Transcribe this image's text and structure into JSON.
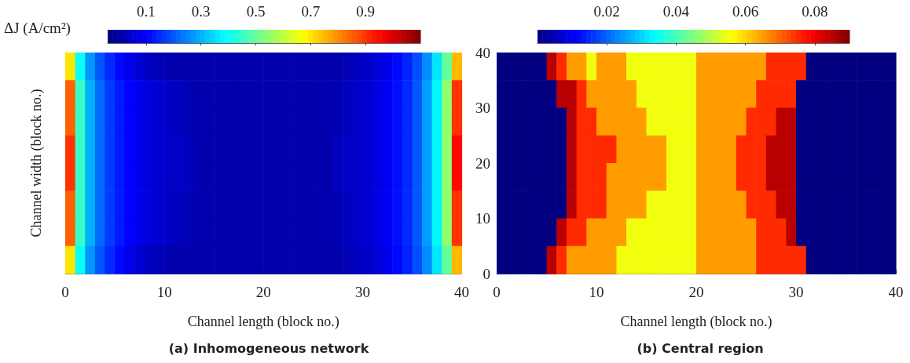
{
  "chart_data": [
    {
      "type": "heatmap",
      "title": "(a) Inhomogeneous network",
      "xlabel": "Channel length (block no.)",
      "ylabel": "Channel width (block no.)",
      "clabel": "ΔJ (A/cm²)",
      "tick_labels": "x",
      "xlim": [
        0,
        40
      ],
      "ylim": [
        0,
        40
      ],
      "xticks": [
        0,
        10,
        20,
        30,
        40
      ],
      "yticks": [
        0,
        10,
        20,
        30,
        40
      ],
      "clim": [
        -0.04,
        1.1
      ],
      "cticks": [
        0.1,
        0.3,
        0.5,
        0.7,
        0.9
      ],
      "cells": [
        [
          0.7,
          0.4,
          0.27,
          0.2,
          0.15,
          0.11,
          0.08,
          0.05,
          0.03,
          0.02,
          0.01,
          0.01,
          0.01,
          0.01,
          0.01,
          0.01,
          0.01,
          0.01,
          0.01,
          0.01,
          0.01,
          0.01,
          0.01,
          0.01,
          0.01,
          0.01,
          0.01,
          0.01,
          0.02,
          0.03,
          0.04,
          0.06,
          0.08,
          0.11,
          0.14,
          0.19,
          0.26,
          0.36,
          0.5,
          0.75
        ],
        [
          0.85,
          0.45,
          0.3,
          0.22,
          0.17,
          0.13,
          0.1,
          0.08,
          0.06,
          0.05,
          0.04,
          0.03,
          0.02,
          0.01,
          0.01,
          0.01,
          0.01,
          0.01,
          0.01,
          0.01,
          0.01,
          0.01,
          0.01,
          0.01,
          0.01,
          0.01,
          0.01,
          0.02,
          0.03,
          0.04,
          0.05,
          0.07,
          0.09,
          0.12,
          0.15,
          0.2,
          0.28,
          0.38,
          0.55,
          0.9
        ],
        [
          0.85,
          0.45,
          0.3,
          0.22,
          0.17,
          0.13,
          0.1,
          0.08,
          0.06,
          0.05,
          0.04,
          0.03,
          0.02,
          0.01,
          0.01,
          0.01,
          0.01,
          0.01,
          0.01,
          0.01,
          0.01,
          0.01,
          0.01,
          0.01,
          0.01,
          0.01,
          0.01,
          0.02,
          0.03,
          0.04,
          0.05,
          0.07,
          0.09,
          0.12,
          0.15,
          0.2,
          0.28,
          0.38,
          0.55,
          0.9
        ],
        [
          0.9,
          0.45,
          0.3,
          0.22,
          0.17,
          0.13,
          0.1,
          0.08,
          0.06,
          0.05,
          0.04,
          0.04,
          0.03,
          0.01,
          0.01,
          0.01,
          0.01,
          0.01,
          0.01,
          0.01,
          0.01,
          0.01,
          0.01,
          0.01,
          0.01,
          0.01,
          0.01,
          0.03,
          0.04,
          0.04,
          0.05,
          0.07,
          0.09,
          0.12,
          0.15,
          0.2,
          0.28,
          0.38,
          0.55,
          0.95
        ],
        [
          0.9,
          0.45,
          0.3,
          0.22,
          0.17,
          0.13,
          0.1,
          0.08,
          0.06,
          0.05,
          0.04,
          0.04,
          0.03,
          0.01,
          0.01,
          0.01,
          0.01,
          0.01,
          0.01,
          0.01,
          0.01,
          0.01,
          0.01,
          0.01,
          0.01,
          0.01,
          0.01,
          0.03,
          0.04,
          0.04,
          0.05,
          0.07,
          0.09,
          0.12,
          0.15,
          0.2,
          0.28,
          0.38,
          0.55,
          0.95
        ],
        [
          0.85,
          0.45,
          0.3,
          0.22,
          0.17,
          0.13,
          0.1,
          0.08,
          0.06,
          0.05,
          0.04,
          0.03,
          0.02,
          0.01,
          0.01,
          0.01,
          0.01,
          0.01,
          0.01,
          0.01,
          0.01,
          0.01,
          0.01,
          0.01,
          0.01,
          0.01,
          0.01,
          0.02,
          0.03,
          0.04,
          0.05,
          0.07,
          0.09,
          0.12,
          0.15,
          0.2,
          0.28,
          0.38,
          0.55,
          0.9
        ],
        [
          0.85,
          0.45,
          0.3,
          0.22,
          0.17,
          0.13,
          0.1,
          0.08,
          0.06,
          0.05,
          0.04,
          0.03,
          0.02,
          0.01,
          0.01,
          0.01,
          0.01,
          0.01,
          0.01,
          0.01,
          0.01,
          0.01,
          0.01,
          0.01,
          0.01,
          0.01,
          0.01,
          0.02,
          0.03,
          0.04,
          0.05,
          0.07,
          0.09,
          0.12,
          0.15,
          0.2,
          0.28,
          0.38,
          0.55,
          0.9
        ],
        [
          0.7,
          0.4,
          0.27,
          0.2,
          0.15,
          0.11,
          0.08,
          0.05,
          0.03,
          0.02,
          0.01,
          0.01,
          0.01,
          0.01,
          0.01,
          0.01,
          0.01,
          0.01,
          0.01,
          0.01,
          0.01,
          0.01,
          0.01,
          0.01,
          0.01,
          0.01,
          0.01,
          0.01,
          0.02,
          0.03,
          0.04,
          0.06,
          0.08,
          0.11,
          0.14,
          0.19,
          0.26,
          0.36,
          0.5,
          0.75
        ]
      ]
    },
    {
      "type": "heatmap",
      "title": "(b) Central region",
      "xlabel": "Channel length (block no.)",
      "xlim": [
        0,
        40
      ],
      "ylim": [
        0,
        40
      ],
      "xticks": [
        0,
        10,
        20,
        30,
        40
      ],
      "yticks": [
        0,
        10,
        20,
        30,
        40
      ],
      "clim": [
        0,
        0.09
      ],
      "cticks": [
        0.02,
        0.04,
        0.06,
        0.08
      ],
      "cells": [
        [
          0,
          0,
          0,
          0,
          0,
          0.085,
          0.075,
          0.065,
          0.065,
          0.055,
          0.065,
          0.065,
          0.065,
          0.055,
          0.055,
          0.055,
          0.055,
          0.055,
          0.055,
          0.055,
          0.065,
          0.065,
          0.065,
          0.065,
          0.065,
          0.065,
          0.065,
          0.075,
          0.075,
          0.075,
          0.075,
          0,
          0,
          0,
          0,
          0,
          0,
          0,
          0,
          0
        ],
        [
          0,
          0,
          0,
          0,
          0,
          0,
          0.085,
          0.085,
          0.075,
          0.065,
          0.065,
          0.065,
          0.065,
          0.065,
          0.055,
          0.055,
          0.055,
          0.055,
          0.055,
          0.055,
          0.065,
          0.065,
          0.065,
          0.065,
          0.065,
          0.065,
          0.075,
          0.075,
          0.075,
          0.075,
          0,
          0,
          0,
          0,
          0,
          0,
          0,
          0,
          0,
          0
        ],
        [
          0,
          0,
          0,
          0,
          0,
          0,
          0,
          0.085,
          0.075,
          0.075,
          0.065,
          0.065,
          0.065,
          0.065,
          0.065,
          0.055,
          0.055,
          0.055,
          0.055,
          0.055,
          0.065,
          0.065,
          0.065,
          0.065,
          0.065,
          0.075,
          0.075,
          0.075,
          0.085,
          0.085,
          0,
          0,
          0,
          0,
          0,
          0,
          0,
          0,
          0,
          0
        ],
        [
          0,
          0,
          0,
          0,
          0,
          0,
          0,
          0.085,
          0.075,
          0.075,
          0.075,
          0.075,
          0.065,
          0.065,
          0.065,
          0.065,
          0.065,
          0.055,
          0.055,
          0.055,
          0.065,
          0.065,
          0.065,
          0.065,
          0.075,
          0.075,
          0.075,
          0.085,
          0.085,
          0.085,
          0,
          0,
          0,
          0,
          0,
          0,
          0,
          0,
          0,
          0
        ],
        [
          0,
          0,
          0,
          0,
          0,
          0,
          0,
          0.085,
          0.075,
          0.075,
          0.075,
          0.065,
          0.065,
          0.065,
          0.065,
          0.065,
          0.065,
          0.055,
          0.055,
          0.055,
          0.065,
          0.065,
          0.065,
          0.065,
          0.075,
          0.075,
          0.075,
          0.085,
          0.085,
          0.085,
          0,
          0,
          0,
          0,
          0,
          0,
          0,
          0,
          0,
          0
        ],
        [
          0,
          0,
          0,
          0,
          0,
          0,
          0,
          0.085,
          0.075,
          0.075,
          0.075,
          0.065,
          0.065,
          0.065,
          0.065,
          0.055,
          0.055,
          0.055,
          0.055,
          0.055,
          0.065,
          0.065,
          0.065,
          0.065,
          0.065,
          0.075,
          0.075,
          0.075,
          0.085,
          0.085,
          0,
          0,
          0,
          0,
          0,
          0,
          0,
          0,
          0,
          0
        ],
        [
          0,
          0,
          0,
          0,
          0,
          0,
          0.085,
          0.075,
          0.075,
          0.065,
          0.065,
          0.065,
          0.065,
          0.055,
          0.055,
          0.055,
          0.055,
          0.055,
          0.055,
          0.055,
          0.065,
          0.065,
          0.065,
          0.065,
          0.065,
          0.065,
          0.075,
          0.075,
          0.075,
          0.085,
          0,
          0,
          0,
          0,
          0,
          0,
          0,
          0,
          0,
          0
        ],
        [
          0,
          0,
          0,
          0,
          0,
          0.085,
          0.075,
          0.065,
          0.065,
          0.065,
          0.065,
          0.065,
          0.055,
          0.055,
          0.055,
          0.055,
          0.055,
          0.055,
          0.055,
          0.055,
          0.065,
          0.065,
          0.065,
          0.065,
          0.065,
          0.065,
          0.075,
          0.075,
          0.075,
          0.075,
          0.075,
          0,
          0,
          0,
          0,
          0,
          0,
          0,
          0,
          0
        ]
      ]
    }
  ]
}
